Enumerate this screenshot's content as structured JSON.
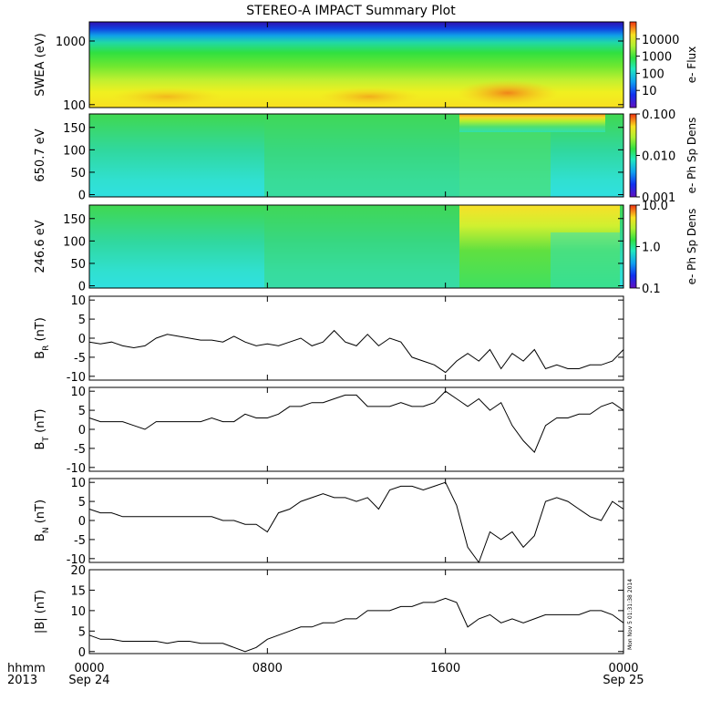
{
  "title": "STEREO-A IMPACT Summary Plot",
  "stamp": "Mon Nov  5 01:31:38 2014",
  "x_axis": {
    "row1_label": "hhmm",
    "row2_label": "2013",
    "ticks": [
      {
        "hour": 0,
        "time": "0000",
        "date": "Sep 24"
      },
      {
        "hour": 8,
        "time": "0800",
        "date": ""
      },
      {
        "hour": 16,
        "time": "1600",
        "date": ""
      },
      {
        "hour": 24,
        "time": "0000",
        "date": "Sep 25"
      }
    ],
    "range_hours": [
      0,
      24
    ]
  },
  "chart_data": [
    {
      "type": "heatmap",
      "ylabel": "SWEA (eV)",
      "yscale": "log",
      "ylim": [
        90,
        2000
      ],
      "ytick_labels": [
        "100",
        "1000"
      ],
      "ytick_values": [
        100,
        1000
      ],
      "colorbar": {
        "label": "e- Flux",
        "scale": "log",
        "range": [
          1,
          100000
        ],
        "tick_labels": [
          "10",
          "100",
          "1000",
          "10000"
        ],
        "tick_values": [
          10,
          100,
          1000,
          10000
        ]
      },
      "description_values": {
        "low_energy_flux_peak_hours": [
          14.8,
          19.5
        ]
      }
    },
    {
      "type": "heatmap",
      "ylabel": "650.7 eV",
      "ylim": [
        -5,
        180
      ],
      "ytick_labels": [
        "0",
        "50",
        "100",
        "150"
      ],
      "ytick_values": [
        0,
        50,
        100,
        150
      ],
      "colorbar": {
        "label": "e- Ph Sp Dens",
        "scale": "log",
        "range": [
          0.001,
          0.1
        ],
        "tick_labels": [
          "0.001",
          "0.010",
          "0.100"
        ],
        "tick_values": [
          0.001,
          0.01,
          0.1
        ]
      }
    },
    {
      "type": "heatmap",
      "ylabel": "246.6 eV",
      "ylim": [
        -5,
        180
      ],
      "ytick_labels": [
        "0",
        "50",
        "100",
        "150"
      ],
      "ytick_values": [
        0,
        50,
        100,
        150
      ],
      "colorbar": {
        "label": "e- Ph Sp Dens",
        "scale": "log",
        "range": [
          0.1,
          10
        ],
        "tick_labels": [
          "0.1",
          "1.0",
          "10.0"
        ],
        "tick_values": [
          0.1,
          1,
          10
        ]
      }
    },
    {
      "type": "line",
      "ylabel": "B",
      "ylabel_sub": "R",
      "ylabel_unit": " (nT)",
      "ylim": [
        -11,
        11
      ],
      "ytick_values": [
        -10,
        -5,
        0,
        5,
        10
      ],
      "ytick_labels": [
        "-10",
        "-5",
        "0",
        "5",
        "10"
      ],
      "x": [
        0,
        0.5,
        1,
        1.5,
        2,
        2.5,
        3,
        3.5,
        4,
        4.5,
        5,
        5.5,
        6,
        6.5,
        7,
        7.5,
        8,
        8.5,
        9,
        9.5,
        10,
        10.5,
        11,
        11.5,
        12,
        12.5,
        13,
        13.5,
        14,
        14.5,
        15,
        15.5,
        16,
        16.5,
        17,
        17.5,
        18,
        18.5,
        19,
        19.5,
        20,
        20.5,
        21,
        21.5,
        22,
        22.5,
        23,
        23.5,
        24
      ],
      "y": [
        -1,
        -1.5,
        -1,
        -2,
        -2.5,
        -2,
        0,
        1,
        0.5,
        0,
        -0.5,
        -0.5,
        -1,
        0.5,
        -1,
        -2,
        -1.5,
        -2,
        -1,
        0,
        -2,
        -1,
        2,
        -1,
        -2,
        1,
        -2,
        0,
        -1,
        -5,
        -6,
        -7,
        -9,
        -6,
        -4,
        -6,
        -3,
        -8,
        -4,
        -6,
        -3,
        -8,
        -7,
        -8,
        -8,
        -7,
        -7,
        -6,
        -3
      ]
    },
    {
      "type": "line",
      "ylabel": "B",
      "ylabel_sub": "T",
      "ylabel_unit": " (nT)",
      "ylim": [
        -11,
        11
      ],
      "ytick_values": [
        -10,
        -5,
        0,
        5,
        10
      ],
      "ytick_labels": [
        "-10",
        "-5",
        "0",
        "5",
        "10"
      ],
      "x": [
        0,
        0.5,
        1,
        1.5,
        2,
        2.5,
        3,
        3.5,
        4,
        4.5,
        5,
        5.5,
        6,
        6.5,
        7,
        7.5,
        8,
        8.5,
        9,
        9.5,
        10,
        10.5,
        11,
        11.5,
        12,
        12.5,
        13,
        13.5,
        14,
        14.5,
        15,
        15.5,
        16,
        16.5,
        17,
        17.5,
        18,
        18.5,
        19,
        19.5,
        20,
        20.5,
        21,
        21.5,
        22,
        22.5,
        23,
        23.5,
        24
      ],
      "y": [
        3,
        2,
        2,
        2,
        1,
        0,
        2,
        2,
        2,
        2,
        2,
        3,
        2,
        2,
        4,
        3,
        3,
        4,
        6,
        6,
        7,
        7,
        8,
        9,
        9,
        6,
        6,
        6,
        7,
        6,
        6,
        7,
        10,
        8,
        6,
        8,
        5,
        7,
        1,
        -3,
        -6,
        1,
        3,
        3,
        4,
        4,
        6,
        7,
        5
      ]
    },
    {
      "type": "line",
      "ylabel": "B",
      "ylabel_sub": "N",
      "ylabel_unit": " (nT)",
      "ylim": [
        -11,
        11
      ],
      "ytick_values": [
        -10,
        -5,
        0,
        5,
        10
      ],
      "ytick_labels": [
        "-10",
        "-5",
        "0",
        "5",
        "10"
      ],
      "x": [
        0,
        0.5,
        1,
        1.5,
        2,
        2.5,
        3,
        3.5,
        4,
        4.5,
        5,
        5.5,
        6,
        6.5,
        7,
        7.5,
        8,
        8.5,
        9,
        9.5,
        10,
        10.5,
        11,
        11.5,
        12,
        12.5,
        13,
        13.5,
        14,
        14.5,
        15,
        15.5,
        16,
        16.5,
        17,
        17.5,
        18,
        18.5,
        19,
        19.5,
        20,
        20.5,
        21,
        21.5,
        22,
        22.5,
        23,
        23.5,
        24
      ],
      "y": [
        3,
        2,
        2,
        1,
        1,
        1,
        1,
        1,
        1,
        1,
        1,
        1,
        0,
        0,
        -1,
        -1,
        -3,
        2,
        3,
        5,
        6,
        7,
        6,
        6,
        5,
        6,
        3,
        8,
        9,
        9,
        8,
        9,
        10,
        4,
        -7,
        -11,
        -3,
        -5,
        -3,
        -7,
        -4,
        5,
        6,
        5,
        3,
        1,
        0,
        5,
        3
      ]
    },
    {
      "type": "line",
      "ylabel": "|B| (nT)",
      "ylim": [
        -0.5,
        20
      ],
      "ytick_values": [
        0,
        5,
        10,
        15,
        20
      ],
      "ytick_labels": [
        "0",
        "5",
        "10",
        "15",
        "20"
      ],
      "x": [
        0,
        0.5,
        1,
        1.5,
        2,
        2.5,
        3,
        3.5,
        4,
        4.5,
        5,
        5.5,
        6,
        6.5,
        7,
        7.5,
        8,
        8.5,
        9,
        9.5,
        10,
        10.5,
        11,
        11.5,
        12,
        12.5,
        13,
        13.5,
        14,
        14.5,
        15,
        15.5,
        16,
        16.5,
        17,
        17.5,
        18,
        18.5,
        19,
        19.5,
        20,
        20.5,
        21,
        21.5,
        22,
        22.5,
        23,
        23.5,
        24
      ],
      "y": [
        4,
        3,
        3,
        2.5,
        2.5,
        2.5,
        2.5,
        2,
        2.5,
        2.5,
        2,
        2,
        2,
        1,
        0,
        1,
        3,
        4,
        5,
        6,
        6,
        7,
        7,
        8,
        8,
        10,
        10,
        10,
        11,
        11,
        12,
        12,
        13,
        12,
        6,
        8,
        9,
        7,
        8,
        7,
        8,
        9,
        9,
        9,
        9,
        10,
        10,
        9,
        7
      ]
    }
  ]
}
